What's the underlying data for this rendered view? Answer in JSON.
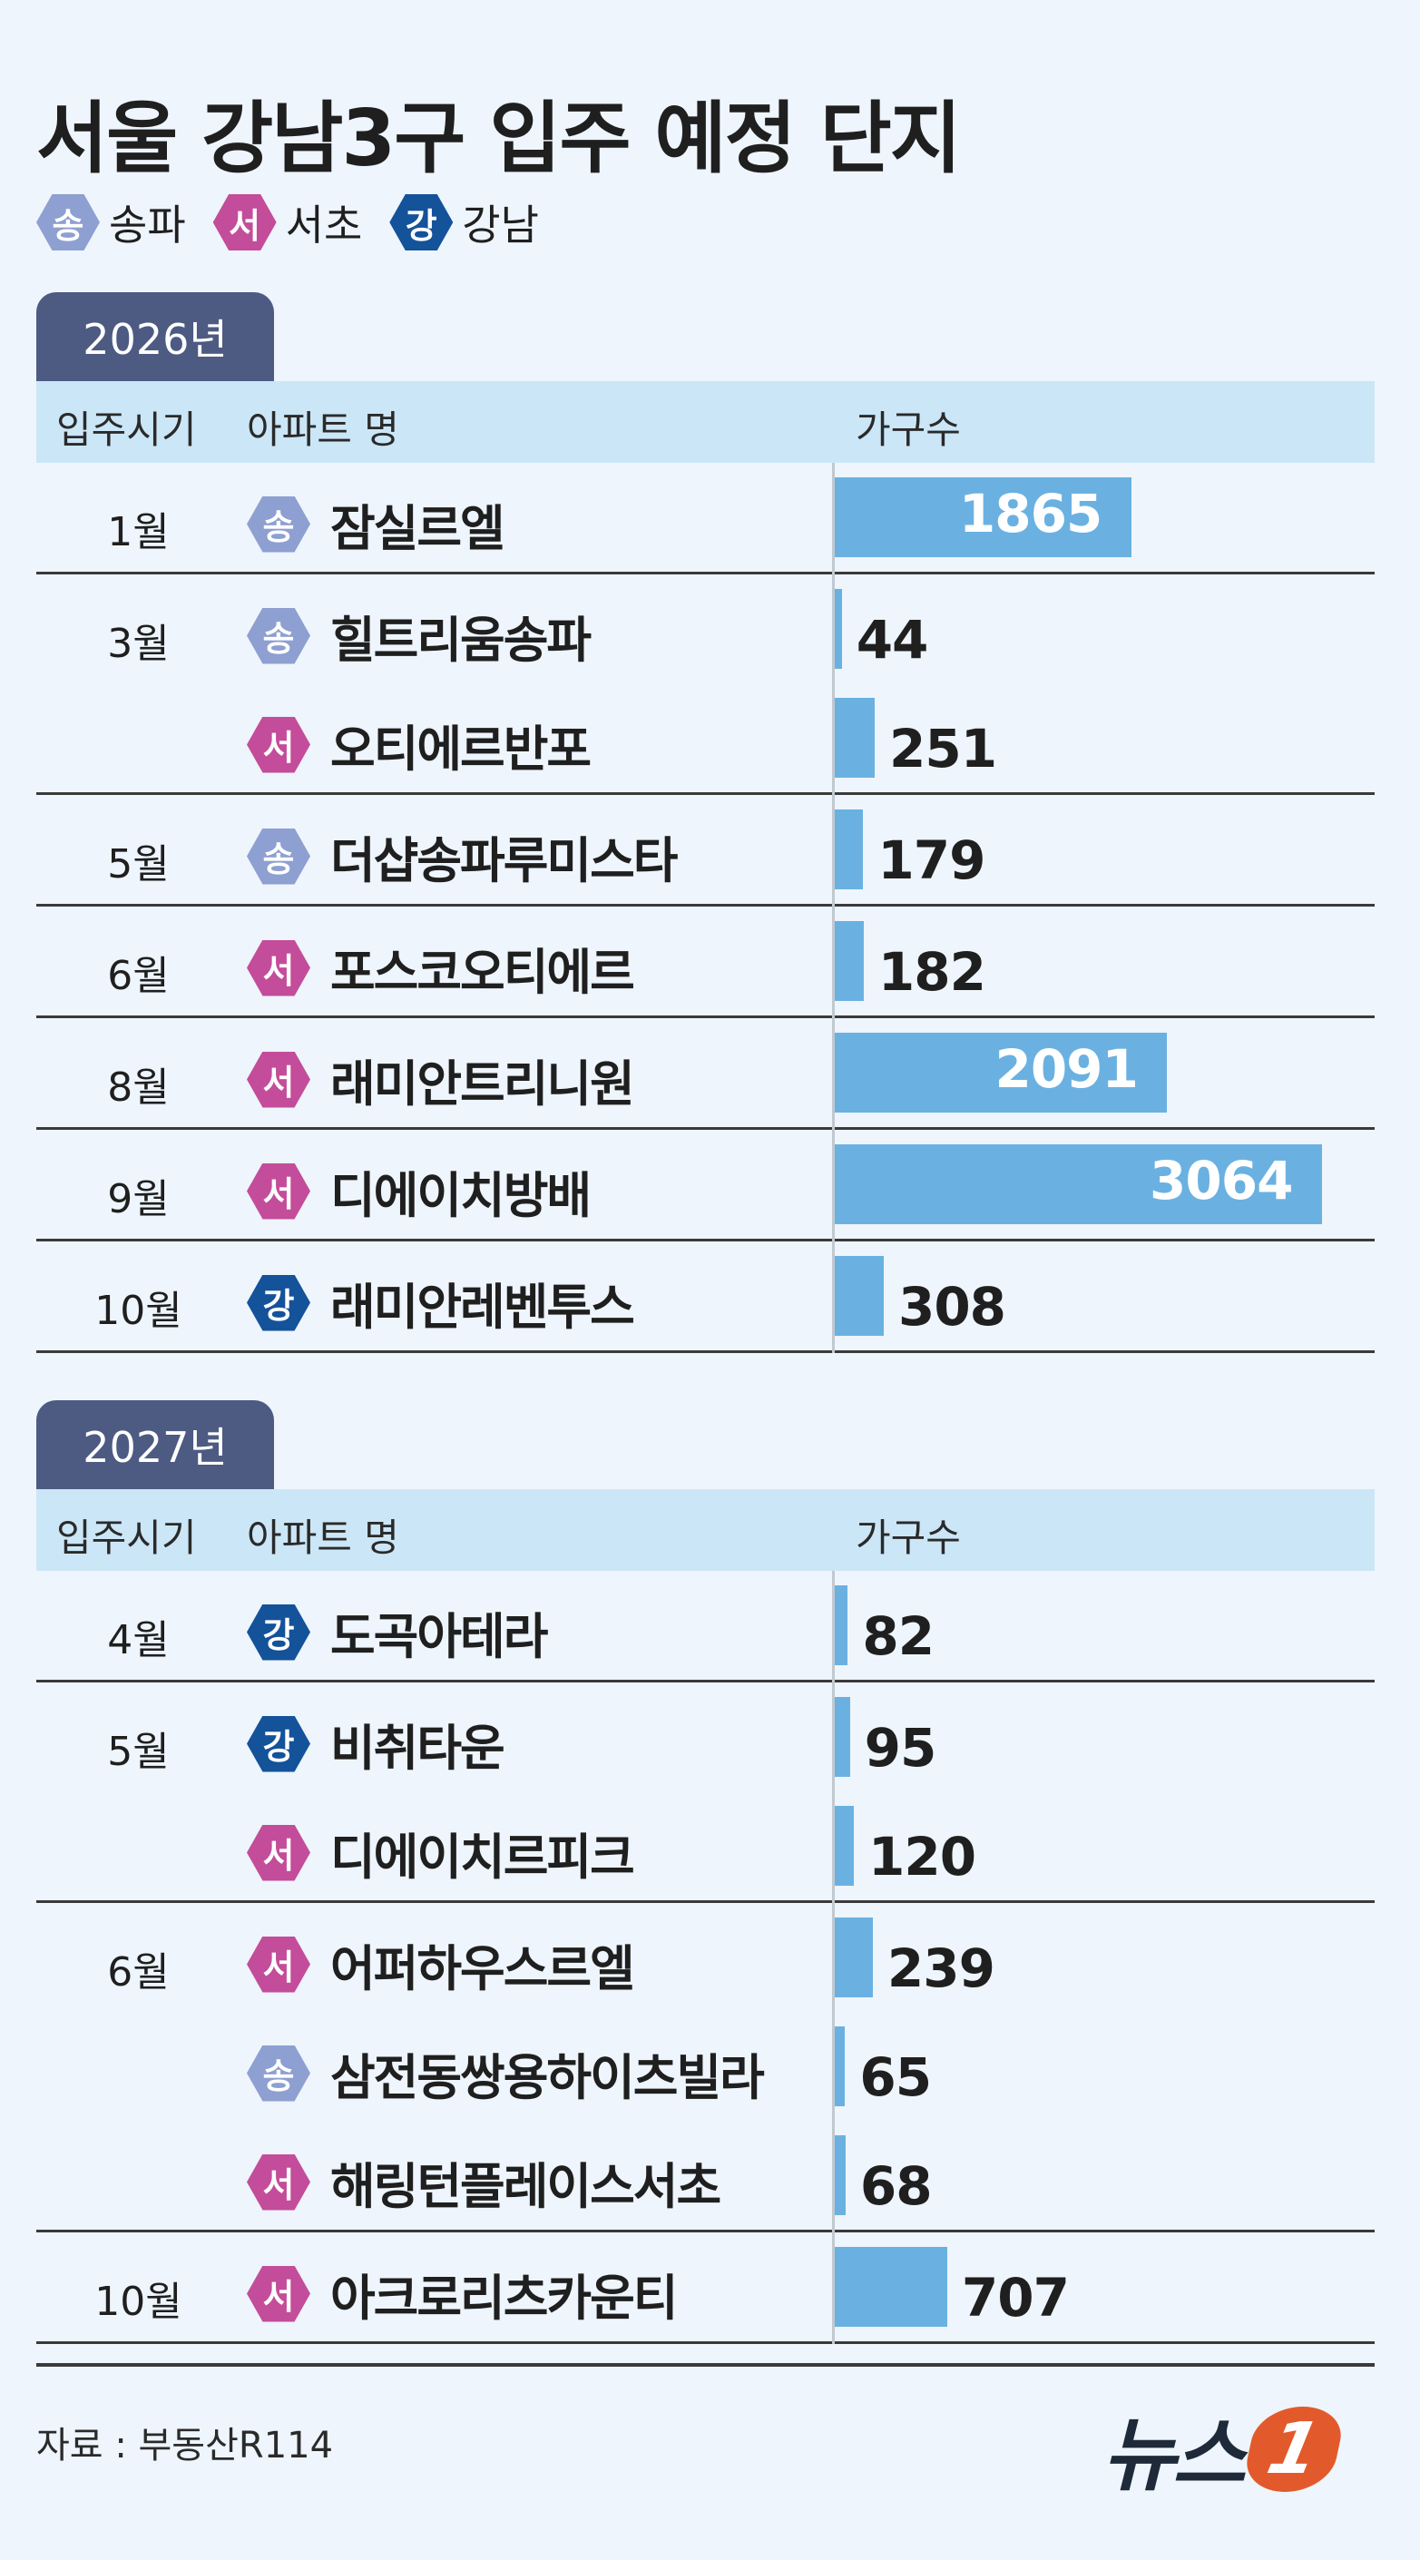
{
  "title": "서울 강남3구 입주 예정 단지",
  "legend": [
    {
      "key": "songpa",
      "badge": "송",
      "label": "송파"
    },
    {
      "key": "seocho",
      "badge": "서",
      "label": "서초"
    },
    {
      "key": "gangnam",
      "badge": "강",
      "label": "강남"
    }
  ],
  "headers": {
    "period": "입주시기",
    "apartment": "아파트 명",
    "units": "가구수"
  },
  "source": "자료 : 부동산R114",
  "logo": {
    "text": "뉴스",
    "mark": "1"
  },
  "colors": {
    "songpa": "#8e9fd1",
    "seocho": "#c34d9a",
    "gangnam": "#14529a",
    "bar": "#6ab1e2"
  },
  "chart_data": {
    "type": "bar",
    "orientation": "horizontal",
    "value_label": "가구수",
    "sections": [
      {
        "year": "2026년",
        "groups": [
          {
            "month": "1월",
            "items": [
              {
                "district": "songpa",
                "badge": "송",
                "name": "잠실르엘",
                "units": 1865
              }
            ]
          },
          {
            "month": "3월",
            "items": [
              {
                "district": "songpa",
                "badge": "송",
                "name": "힐트리움송파",
                "units": 44
              },
              {
                "district": "seocho",
                "badge": "서",
                "name": "오티에르반포",
                "units": 251
              }
            ]
          },
          {
            "month": "5월",
            "items": [
              {
                "district": "songpa",
                "badge": "송",
                "name": "더샵송파루미스타",
                "units": 179
              }
            ]
          },
          {
            "month": "6월",
            "items": [
              {
                "district": "seocho",
                "badge": "서",
                "name": "포스코오티에르",
                "units": 182
              }
            ]
          },
          {
            "month": "8월",
            "items": [
              {
                "district": "seocho",
                "badge": "서",
                "name": "래미안트리니원",
                "units": 2091
              }
            ]
          },
          {
            "month": "9월",
            "items": [
              {
                "district": "seocho",
                "badge": "서",
                "name": "디에이치방배",
                "units": 3064
              }
            ]
          },
          {
            "month": "10월",
            "items": [
              {
                "district": "gangnam",
                "badge": "강",
                "name": "래미안레벤투스",
                "units": 308
              }
            ]
          }
        ]
      },
      {
        "year": "2027년",
        "groups": [
          {
            "month": "4월",
            "items": [
              {
                "district": "gangnam",
                "badge": "강",
                "name": "도곡아테라",
                "units": 82
              }
            ]
          },
          {
            "month": "5월",
            "items": [
              {
                "district": "gangnam",
                "badge": "강",
                "name": "비취타운",
                "units": 95
              },
              {
                "district": "seocho",
                "badge": "서",
                "name": "디에이치르피크",
                "units": 120
              }
            ]
          },
          {
            "month": "6월",
            "items": [
              {
                "district": "seocho",
                "badge": "서",
                "name": "어퍼하우스르엘",
                "units": 239
              },
              {
                "district": "songpa",
                "badge": "송",
                "name": "삼전동쌍용하이츠빌라",
                "units": 65
              },
              {
                "district": "seocho",
                "badge": "서",
                "name": "해링턴플레이스서초",
                "units": 68
              }
            ]
          },
          {
            "month": "10월",
            "items": [
              {
                "district": "seocho",
                "badge": "서",
                "name": "아크로리츠카운티",
                "units": 707
              }
            ]
          }
        ]
      }
    ]
  }
}
